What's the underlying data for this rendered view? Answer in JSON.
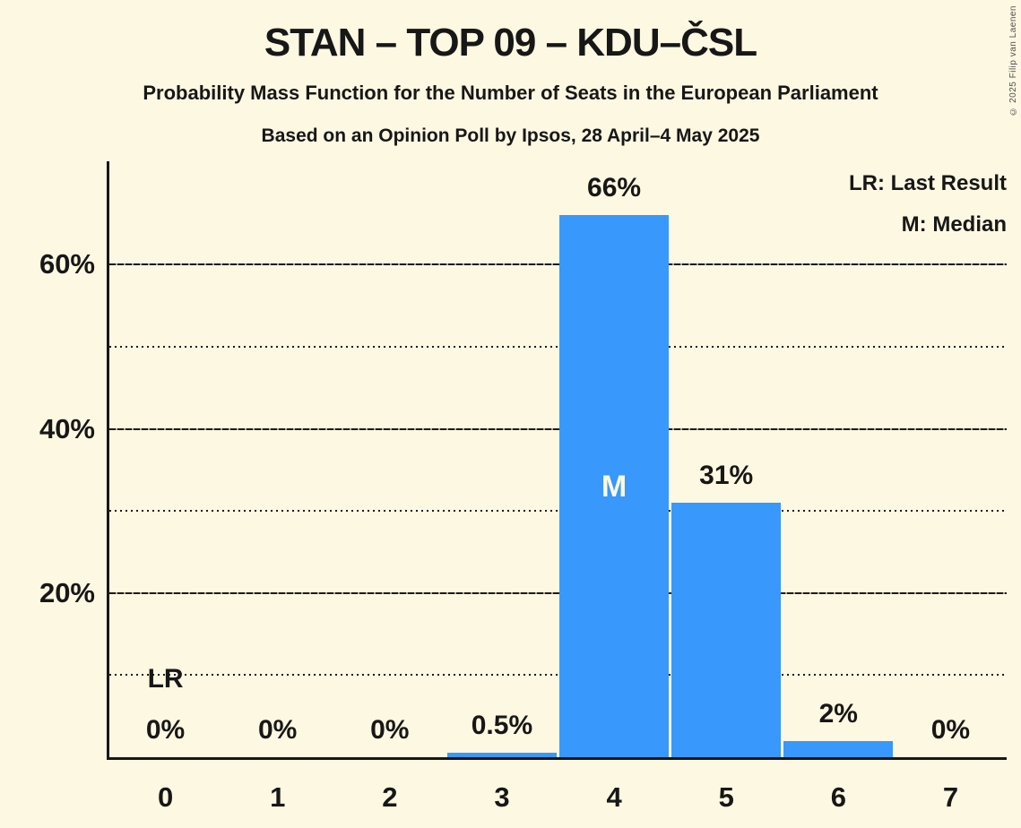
{
  "title": "STAN – TOP 09 – KDU–ČSL",
  "subtitle": "Probability Mass Function for the Number of Seats in the European Parliament",
  "poll_line": "Based on an Opinion Poll by Ipsos, 28 April–4 May 2025",
  "copyright": "© 2025 Filip van Laenen",
  "legend": {
    "lr_label": "LR: Last Result",
    "m_label": "M: Median"
  },
  "colors": {
    "background": "#fdf8e1",
    "bar": "#3898fb",
    "text": "#171717",
    "grid": "#1b1b1b",
    "median_letter": "#fdf8e1",
    "copyright_text": "#4f4f4f"
  },
  "chart_data": {
    "type": "bar",
    "categories": [
      "0",
      "1",
      "2",
      "3",
      "4",
      "5",
      "6",
      "7"
    ],
    "values": [
      0,
      0,
      0,
      0.5,
      66,
      31,
      2,
      0
    ],
    "value_labels": [
      "0%",
      "0%",
      "0%",
      "0.5%",
      "66%",
      "31%",
      "2%",
      "0%"
    ],
    "title": "STAN – TOP 09 – KDU–ČSL",
    "xlabel": "",
    "ylabel": "",
    "ylim": [
      0,
      72.6
    ],
    "yticks": [
      {
        "value": 20,
        "label": "20%"
      },
      {
        "value": 40,
        "label": "40%"
      },
      {
        "value": 60,
        "label": "60%"
      }
    ],
    "grid": {
      "solid_lines_pct": [
        20,
        40,
        60
      ],
      "dotted_lines_pct": [
        10,
        30,
        50
      ]
    },
    "legend_position": "top-right",
    "annotations": [
      {
        "text": "LR",
        "meaning": "Last Result",
        "category": "0",
        "y_pct": 9.5,
        "placement": "above-bar"
      },
      {
        "text": "M",
        "meaning": "Median",
        "category": "4",
        "y_pct": 33.0,
        "placement": "inside-bar"
      }
    ]
  }
}
